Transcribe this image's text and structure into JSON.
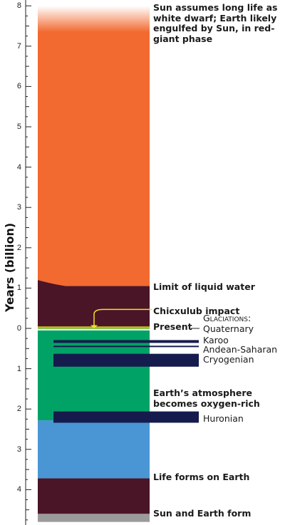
{
  "axis": {
    "title": "Years (billion)",
    "ticks": [
      "8",
      "7",
      "6",
      "5",
      "4",
      "3",
      "2",
      "1",
      "0",
      "1",
      "2",
      "3",
      "4"
    ],
    "range_future": [
      0,
      8
    ],
    "range_past": [
      0,
      4.7
    ]
  },
  "bands": [
    {
      "name": "sun-fade-band",
      "color": "#f26a30",
      "from": 8,
      "to": 7.35
    },
    {
      "name": "red-giant-band",
      "color": "#f26a30",
      "from": 7.35,
      "to": 1.05
    },
    {
      "name": "no-liquid-water-band",
      "color": "#4a1526",
      "from": 1.05,
      "to": 0.02
    },
    {
      "name": "oxygen-rich-band",
      "color": "#00a365",
      "from": -0.05,
      "to": -2.28
    },
    {
      "name": "early-life-band",
      "color": "#4a96d4",
      "from": -2.28,
      "to": -3.72
    },
    {
      "name": "before-life-band",
      "color": "#4a1526",
      "from": -3.72,
      "to": -4.6
    },
    {
      "name": "formation-band",
      "color": "#9b9b9b",
      "from": -4.6,
      "to": -4.8
    }
  ],
  "glaciations": [
    {
      "name": "Karoo",
      "from": -0.29,
      "to": -0.36
    },
    {
      "name": "Andean-Saharan",
      "from": -0.43,
      "to": -0.46
    },
    {
      "name": "Cryogenian",
      "from": -0.63,
      "to": -0.95
    },
    {
      "name": "Huronian",
      "from": -2.06,
      "to": -2.34
    }
  ],
  "labels": {
    "sun_white_dwarf": "Sun assumes long life as white dwarf; Earth likely engulfed by Sun, in red-giant phase",
    "liquid_water": "Limit of liquid water",
    "chicxulub": "Chicxulub impact",
    "present": "Present",
    "glaciations_heading": "Glaciations:",
    "quaternary": "Quaternary",
    "karoo": "Karoo",
    "andean_saharan": "Andean-Saharan",
    "cryogenian": "Cryogenian",
    "oxygen_rich": "Earth’s atmosphere becomes oxygen-rich",
    "huronian": "Huronian",
    "life_forms": "Life forms on Earth",
    "sun_earth_form": "Sun and Earth form"
  },
  "colors": {
    "orange": "#f26a30",
    "maroon": "#4a1526",
    "green": "#00a365",
    "blue": "#4a96d4",
    "gray": "#9b9b9b",
    "glacier_navy": "#161b4d",
    "impact_yellow": "#f2e22a"
  }
}
